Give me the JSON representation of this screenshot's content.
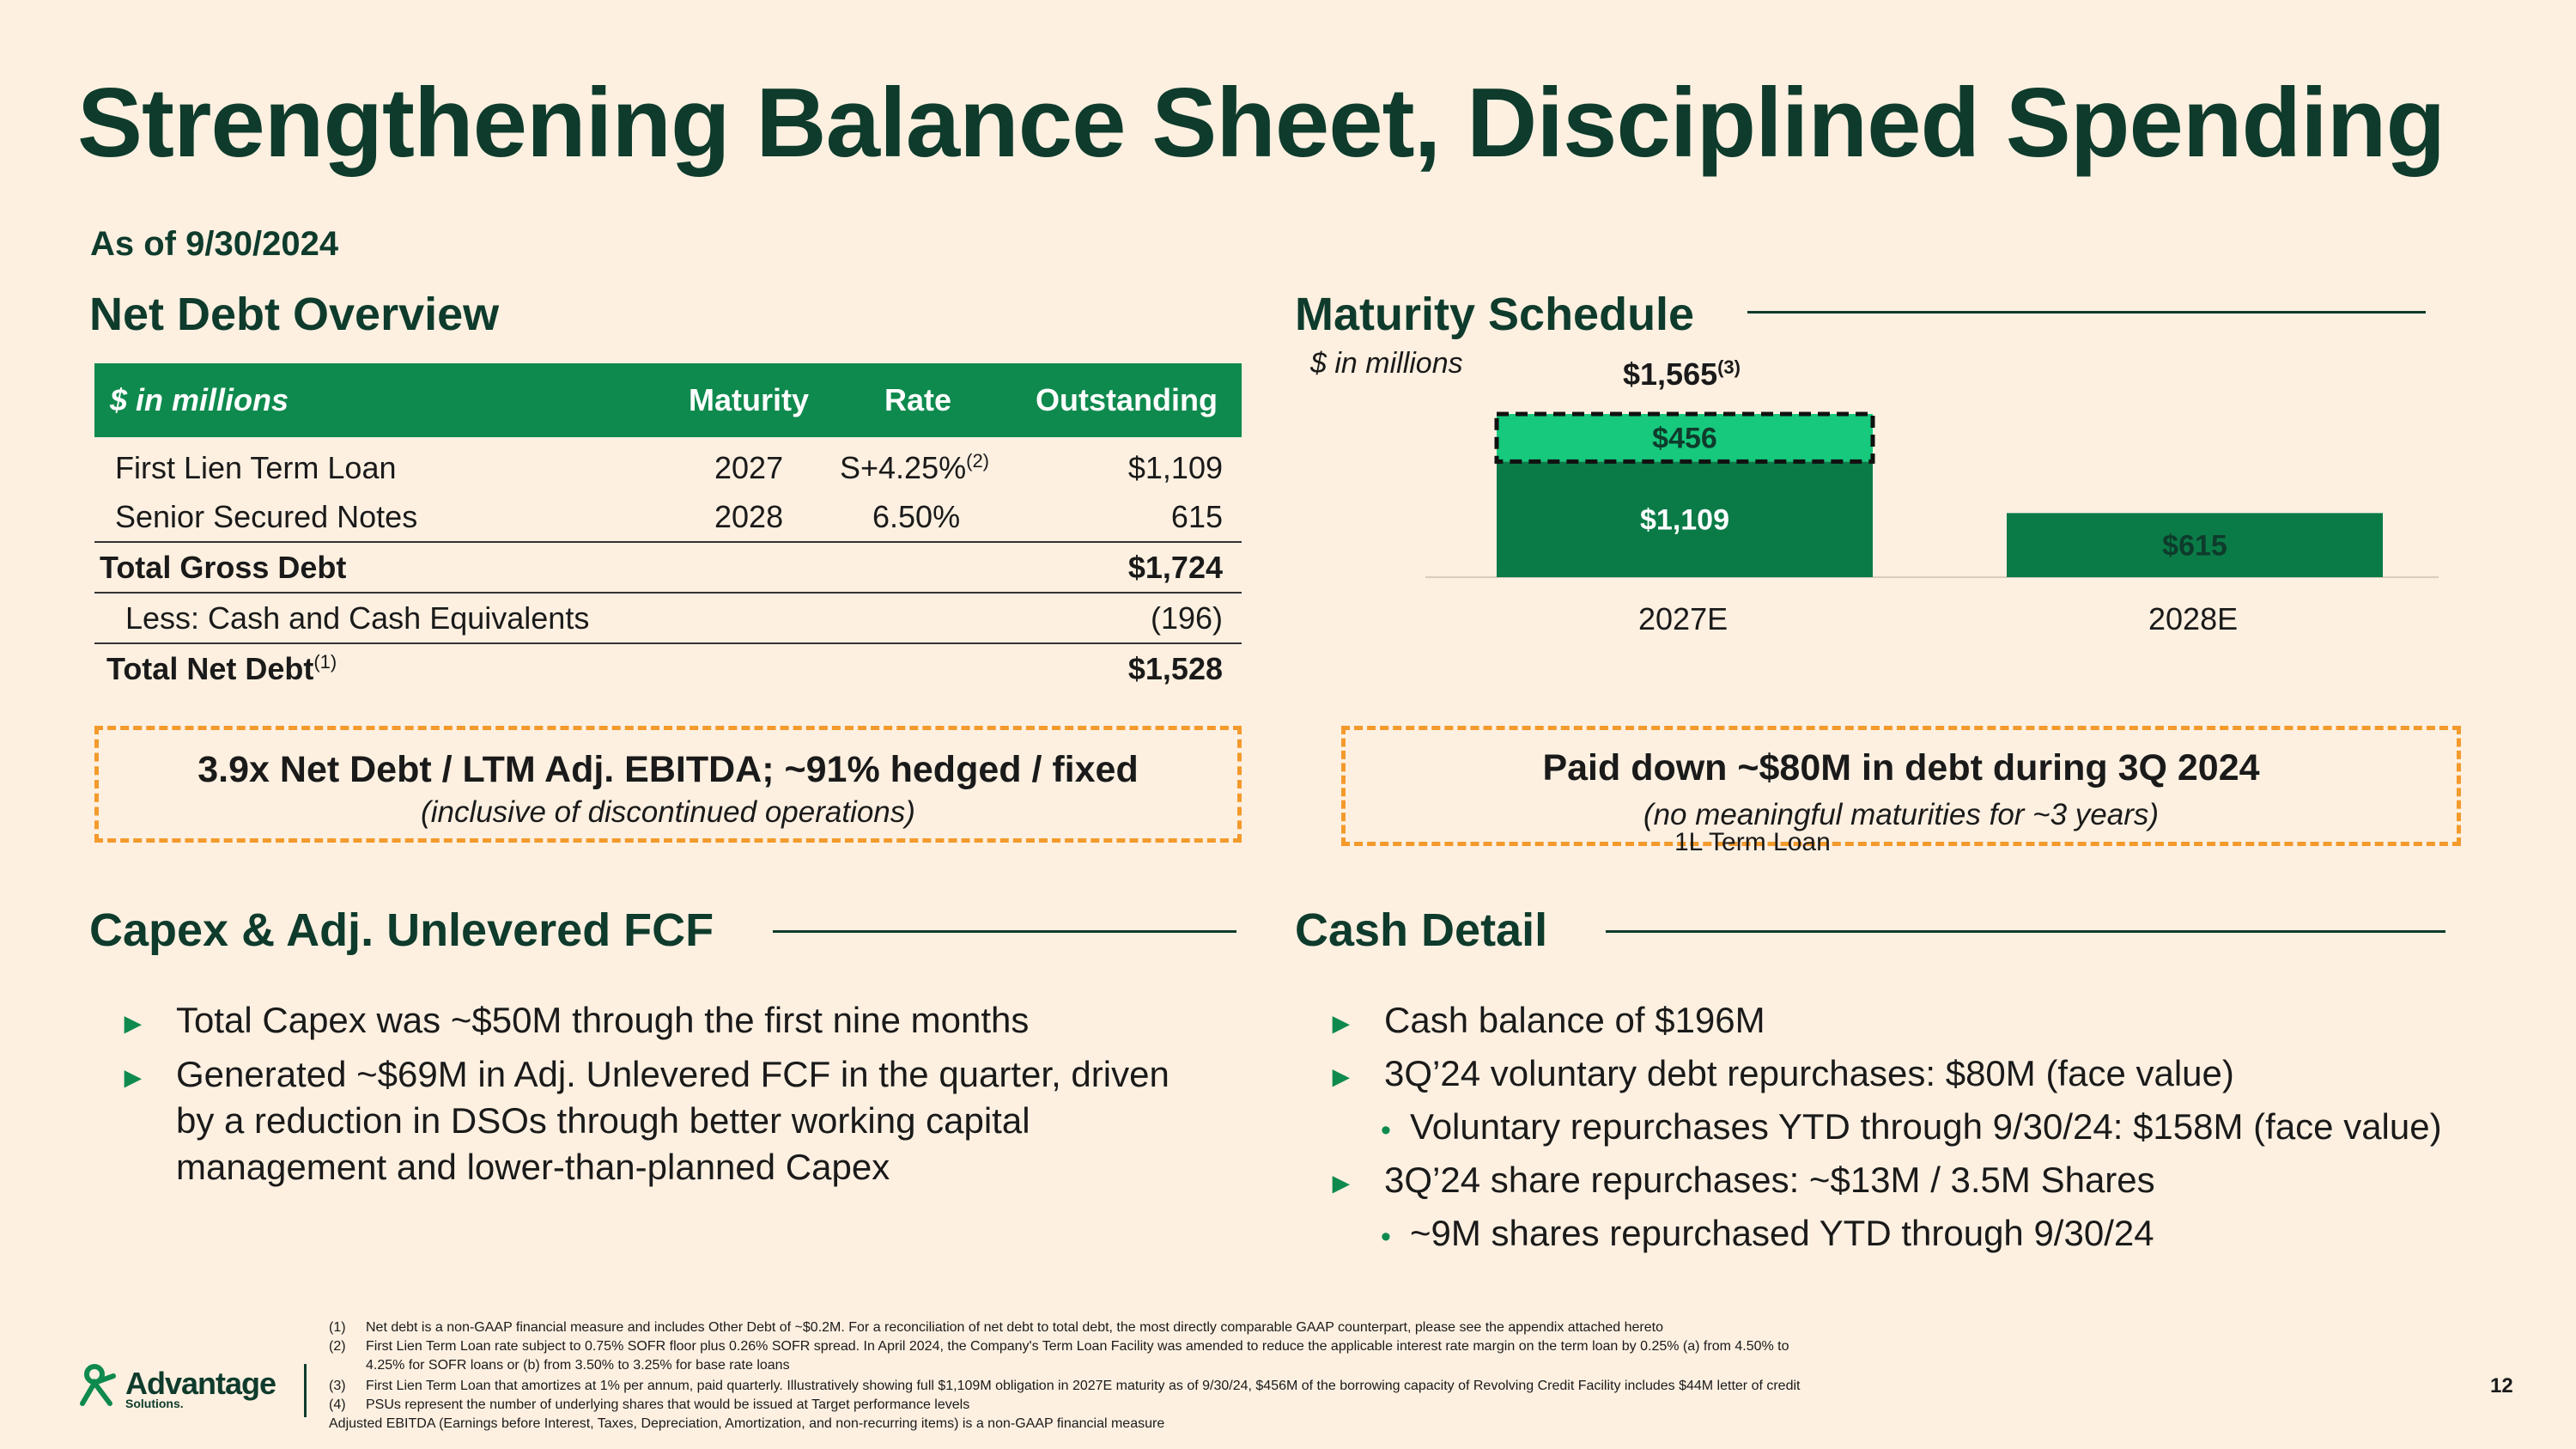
{
  "title": "Strengthening Balance Sheet, Disciplined Spending",
  "as_of": "As of 9/30/2024",
  "net_debt": {
    "heading": "Net Debt Overview",
    "headers": {
      "label": "$ in millions",
      "maturity": "Maturity",
      "rate": "Rate",
      "outstanding": "Outstanding"
    },
    "rows": [
      {
        "label": "First Lien Term Loan",
        "maturity": "2027",
        "rate": "S+4.25%",
        "rate_sup": "(2)",
        "outstanding": "$1,109"
      },
      {
        "label": "Senior Secured Notes",
        "maturity": "2028",
        "rate": "6.50%",
        "outstanding": "615"
      },
      {
        "label": "Total Gross Debt",
        "outstanding": "$1,724"
      },
      {
        "label": "Less: Cash and Cash Equivalents",
        "outstanding": "(196)"
      },
      {
        "label": "Total Net Debt",
        "label_sup": "(1)",
        "outstanding": "$1,528"
      }
    ],
    "callout_main": "3.9x Net Debt / LTM Adj. EBITDA; ~91% hedged / fixed",
    "callout_sub": "(inclusive of discontinued operations)"
  },
  "maturity": {
    "heading": "Maturity Schedule",
    "units": "$ in millions",
    "total_label": "$1,565",
    "total_sup": "(3)",
    "callout_main": "Paid down ~$80M in debt during 3Q 2024",
    "callout_sub": "(no meaningful maturities for ~3 years)",
    "stray_label": "1L Term Loan"
  },
  "chart_data": {
    "type": "bar",
    "categories": [
      "2027E",
      "2028E"
    ],
    "series": [
      {
        "values": [
          1109,
          615
        ],
        "labels": [
          "$1,109",
          "$615"
        ]
      },
      {
        "values": [
          456,
          0
        ],
        "labels": [
          "$456",
          ""
        ]
      }
    ],
    "stacked": true,
    "colors": [
      "#0a7b47",
      "#17c97d"
    ]
  },
  "capex": {
    "heading": "Capex & Adj. Unlevered FCF",
    "bullets": [
      "Total Capex was ~$50M through the first nine months",
      "Generated ~$69M in Adj. Unlevered FCF in the quarter, driven",
      "by a reduction in DSOs through better working capital",
      "management and lower-than-planned Capex"
    ]
  },
  "cash": {
    "heading": "Cash Detail",
    "b1": "Cash balance of $196M",
    "b2": "3Q’24 voluntary debt repurchases: $80M (face value)",
    "s1": "Voluntary repurchases YTD through 9/30/24: $158M (face value)",
    "b3": "3Q’24 share repurchases: ~$13M / 3.5M Shares",
    "s2": "~9M shares repurchased YTD through 9/30/24"
  },
  "bullet_glyph": "►",
  "sub_glyph": "•",
  "footnotes": {
    "f1n": "(1)",
    "f1": "Net debt is a non-GAAP financial measure and includes Other Debt of ~$0.2M. For a reconciliation of net debt to total debt, the most directly comparable GAAP counterpart, please see the appendix attached hereto",
    "f2n": "(2)",
    "f2a": "First Lien Term Loan rate subject to 0.75% SOFR floor plus 0.26% SOFR spread. In April 2024, the Company's Term Loan Facility was amended to reduce the applicable interest rate margin on the term loan by 0.25% (a) from 4.50% to",
    "f2b": "4.25% for SOFR loans or (b) from 3.50% to 3.25% for base rate loans",
    "f3n": "(3)",
    "f3": "First Lien Term Loan that amortizes at 1% per annum, paid quarterly. Illustratively showing full $1,109M obligation in 2027E maturity as of 9/30/24, $456M of the borrowing capacity of Revolving Credit Facility includes $44M letter of credit",
    "f4n": "(4)",
    "f4": "PSUs represent the number of underlying shares that would be issued at Target performance levels",
    "f5": "Adjusted EBITDA (Earnings before Interest, Taxes, Depreciation, Amortization, and non-recurring items) is a non-GAAP financial measure"
  },
  "logo": {
    "name": "Advantage",
    "sub": "Solutions."
  },
  "page_number": "12"
}
